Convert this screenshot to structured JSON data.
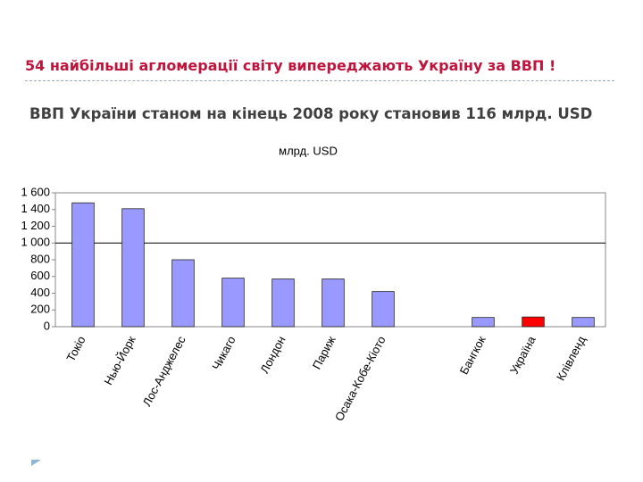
{
  "header": {
    "title": "54 найбільші агломерації світу випереджають Україну за ВВП !",
    "subtitle": "ВВП України станом на кінець 2008 року становив 116 млрд. USD"
  },
  "chart_data": {
    "type": "bar",
    "title": "млрд. USD",
    "categories": [
      "Токіо",
      "Нью-Йорк",
      "Лос-Анджелес",
      "Чикаго",
      "Лондон",
      "Париж",
      "Осака-Кобе-Кіото",
      null,
      "Бангкок",
      "Україна",
      "Клівленд"
    ],
    "values": [
      1480,
      1410,
      800,
      580,
      570,
      570,
      420,
      null,
      110,
      116,
      110
    ],
    "colors": [
      "#9999ff",
      "#9999ff",
      "#9999ff",
      "#9999ff",
      "#9999ff",
      "#9999ff",
      "#9999ff",
      "#9999ff",
      "#9999ff",
      "#ff0000",
      "#9999ff"
    ],
    "ylim": [
      0,
      1600
    ],
    "yticks": [
      0,
      200,
      400,
      600,
      800,
      {
        "value": 1000,
        "label": "1 000"
      },
      {
        "value": 1200,
        "label": "1 200"
      },
      {
        "value": 1400,
        "label": "1 400"
      },
      {
        "value": 1600,
        "label": "1 600"
      }
    ],
    "grid_lines": [
      1000
    ]
  }
}
